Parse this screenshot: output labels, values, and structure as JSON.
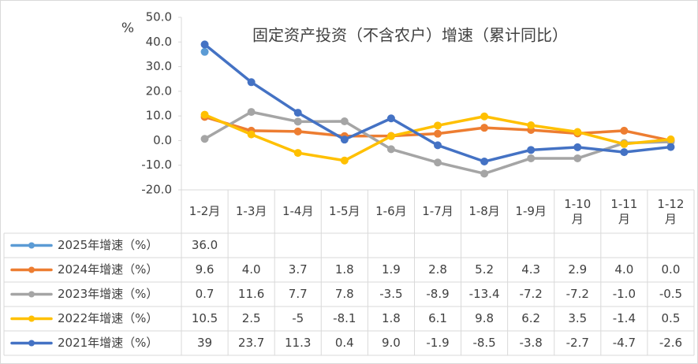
{
  "chart_data": {
    "type": "line",
    "title": "固定资产投资（不含农户）增速（累计同比）",
    "y_label": "%",
    "categories": [
      "1-2月",
      "1-3月",
      "1-4月",
      "1-5月",
      "1-6月",
      "1-7月",
      "1-8月",
      "1-9月",
      "1-10月",
      "1-11月",
      "1-12月"
    ],
    "ylim": [
      -20,
      50
    ],
    "yticks": [
      {
        "value": -20,
        "label": "-20.0"
      },
      {
        "value": -10,
        "label": "-10.0"
      },
      {
        "value": 0,
        "label": "0.0"
      },
      {
        "value": 10,
        "label": "10.0"
      },
      {
        "value": 20,
        "label": "20.0"
      },
      {
        "value": 30,
        "label": "30.0"
      },
      {
        "value": 40,
        "label": "40.0"
      },
      {
        "value": 50,
        "label": "50.0"
      }
    ],
    "grid": false,
    "series": [
      {
        "name": "2025年增速（%）",
        "color": "#5b9bd5",
        "values": [
          36,
          null,
          null,
          null,
          null,
          null,
          null,
          null,
          null,
          null,
          null
        ],
        "value_labels": [
          "36.0",
          null,
          null,
          null,
          null,
          null,
          null,
          null,
          null,
          null,
          null
        ]
      },
      {
        "name": "2024年增速（%）",
        "color": "#ed7d31",
        "values": [
          9.6,
          4,
          3.7,
          1.8,
          1.9,
          2.8,
          5.2,
          4.3,
          2.9,
          4,
          0
        ],
        "value_labels": [
          "9.6",
          "4.0",
          "3.7",
          "1.8",
          "1.9",
          "2.8",
          "5.2",
          "4.3",
          "2.9",
          "4.0",
          "0.0"
        ]
      },
      {
        "name": "2023年增速（%）",
        "color": "#a5a5a5",
        "values": [
          0.7,
          11.6,
          7.7,
          7.8,
          -3.5,
          -8.9,
          -13.4,
          -7.2,
          -7.2,
          -1,
          -0.5
        ],
        "value_labels": [
          "0.7",
          "11.6",
          "7.7",
          "7.8",
          "-3.5",
          "-8.9",
          "-13.4",
          "-7.2",
          "-7.2",
          "-1.0",
          "-0.5"
        ]
      },
      {
        "name": "2022年增速（%）",
        "color": "#ffc000",
        "values": [
          10.5,
          2.5,
          -5,
          -8.1,
          1.8,
          6.1,
          9.8,
          6.2,
          3.5,
          -1.4,
          0.5
        ],
        "value_labels": [
          "10.5",
          "2.5",
          "-5",
          "-8.1",
          "1.8",
          "6.1",
          "9.8",
          "6.2",
          "3.5",
          "-1.4",
          "0.5"
        ]
      },
      {
        "name": "2021年增速（%）",
        "color": "#4472c4",
        "values": [
          39,
          23.7,
          11.3,
          0.4,
          9,
          -1.9,
          -8.5,
          -3.8,
          -2.7,
          -4.7,
          -2.6
        ],
        "value_labels": [
          "39",
          "23.7",
          "11.3",
          "0.4",
          "9.0",
          "-1.9",
          "-8.5",
          "-3.8",
          "-2.7",
          "-4.7",
          "-2.6"
        ]
      }
    ]
  }
}
